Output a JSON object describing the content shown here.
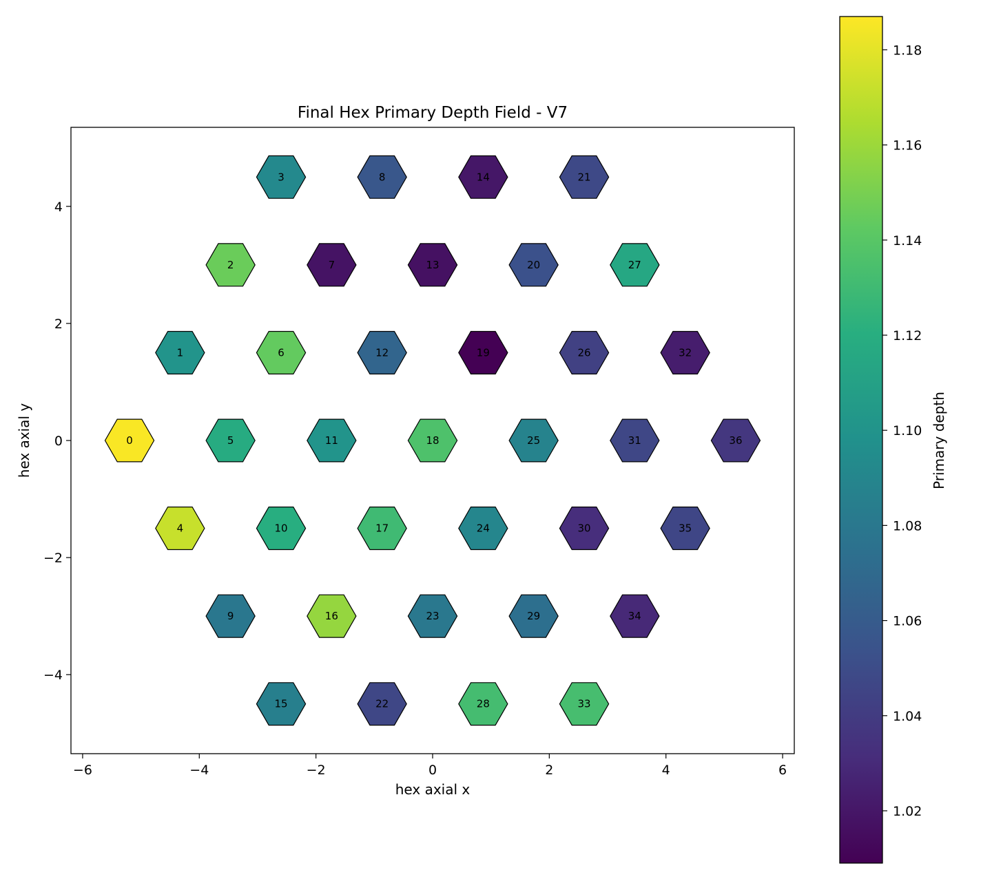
{
  "chart_data": {
    "type": "heatmap",
    "subtype": "hexagonal-grid",
    "title": "Final Hex Primary Depth Field - V7",
    "xlabel": "hex axial x",
    "ylabel": "hex axial y",
    "xlim": [
      -6.2,
      6.2
    ],
    "ylim": [
      -5.35,
      5.35
    ],
    "xticks": [
      -6,
      -4,
      -2,
      0,
      2,
      4,
      6
    ],
    "yticks": [
      -4,
      -2,
      0,
      2,
      4
    ],
    "grid": false,
    "colormap": "viridis",
    "colorbar": {
      "label": "Primary depth",
      "range": [
        1.009,
        1.187
      ],
      "ticks": [
        1.02,
        1.04,
        1.06,
        1.08,
        1.1,
        1.12,
        1.14,
        1.16,
        1.18
      ],
      "tick_labels": [
        "1.02",
        "1.04",
        "1.06",
        "1.08",
        "1.10",
        "1.12",
        "1.14",
        "1.16",
        "1.18"
      ]
    },
    "cells": [
      {
        "id": "0",
        "x": -5.196,
        "y": 0.0,
        "value": 1.186
      },
      {
        "id": "1",
        "x": -4.33,
        "y": 1.5,
        "value": 1.1
      },
      {
        "id": "2",
        "x": -3.464,
        "y": 3.0,
        "value": 1.146
      },
      {
        "id": "3",
        "x": -2.598,
        "y": 4.5,
        "value": 1.092
      },
      {
        "id": "4",
        "x": -4.33,
        "y": -1.5,
        "value": 1.172
      },
      {
        "id": "5",
        "x": -3.464,
        "y": 0.0,
        "value": 1.118
      },
      {
        "id": "6",
        "x": -2.598,
        "y": 1.5,
        "value": 1.144
      },
      {
        "id": "7",
        "x": -1.732,
        "y": 3.0,
        "value": 1.018
      },
      {
        "id": "8",
        "x": -0.866,
        "y": 4.5,
        "value": 1.057
      },
      {
        "id": "9",
        "x": -3.464,
        "y": -3.0,
        "value": 1.079
      },
      {
        "id": "10",
        "x": -2.598,
        "y": -1.5,
        "value": 1.12
      },
      {
        "id": "11",
        "x": -1.732,
        "y": 0.0,
        "value": 1.1
      },
      {
        "id": "12",
        "x": -0.866,
        "y": 1.5,
        "value": 1.067
      },
      {
        "id": "13",
        "x": 0.0,
        "y": 3.0,
        "value": 1.017
      },
      {
        "id": "14",
        "x": 0.866,
        "y": 4.5,
        "value": 1.02
      },
      {
        "id": "15",
        "x": -2.598,
        "y": -4.5,
        "value": 1.085
      },
      {
        "id": "16",
        "x": -1.732,
        "y": -3.0,
        "value": 1.158
      },
      {
        "id": "17",
        "x": -0.866,
        "y": -1.5,
        "value": 1.13
      },
      {
        "id": "18",
        "x": 0.0,
        "y": 0.0,
        "value": 1.136
      },
      {
        "id": "19",
        "x": 0.866,
        "y": 1.5,
        "value": 1.009
      },
      {
        "id": "20",
        "x": 1.732,
        "y": 3.0,
        "value": 1.053
      },
      {
        "id": "21",
        "x": 2.598,
        "y": 4.5,
        "value": 1.048
      },
      {
        "id": "22",
        "x": -0.866,
        "y": -4.5,
        "value": 1.047
      },
      {
        "id": "23",
        "x": 0.0,
        "y": -3.0,
        "value": 1.08
      },
      {
        "id": "24",
        "x": 0.866,
        "y": -1.5,
        "value": 1.09
      },
      {
        "id": "25",
        "x": 1.732,
        "y": 0.0,
        "value": 1.088
      },
      {
        "id": "26",
        "x": 2.598,
        "y": 1.5,
        "value": 1.043
      },
      {
        "id": "27",
        "x": 3.464,
        "y": 3.0,
        "value": 1.115
      },
      {
        "id": "28",
        "x": 0.866,
        "y": -4.5,
        "value": 1.132
      },
      {
        "id": "29",
        "x": 1.732,
        "y": -3.0,
        "value": 1.074
      },
      {
        "id": "30",
        "x": 2.598,
        "y": -1.5,
        "value": 1.032
      },
      {
        "id": "31",
        "x": 3.464,
        "y": 0.0,
        "value": 1.047
      },
      {
        "id": "32",
        "x": 4.33,
        "y": 1.5,
        "value": 1.023
      },
      {
        "id": "33",
        "x": 2.598,
        "y": -4.5,
        "value": 1.133
      },
      {
        "id": "34",
        "x": 3.464,
        "y": -3.0,
        "value": 1.029
      },
      {
        "id": "35",
        "x": 4.33,
        "y": -1.5,
        "value": 1.046
      },
      {
        "id": "36",
        "x": 5.196,
        "y": 0.0,
        "value": 1.037
      }
    ]
  }
}
